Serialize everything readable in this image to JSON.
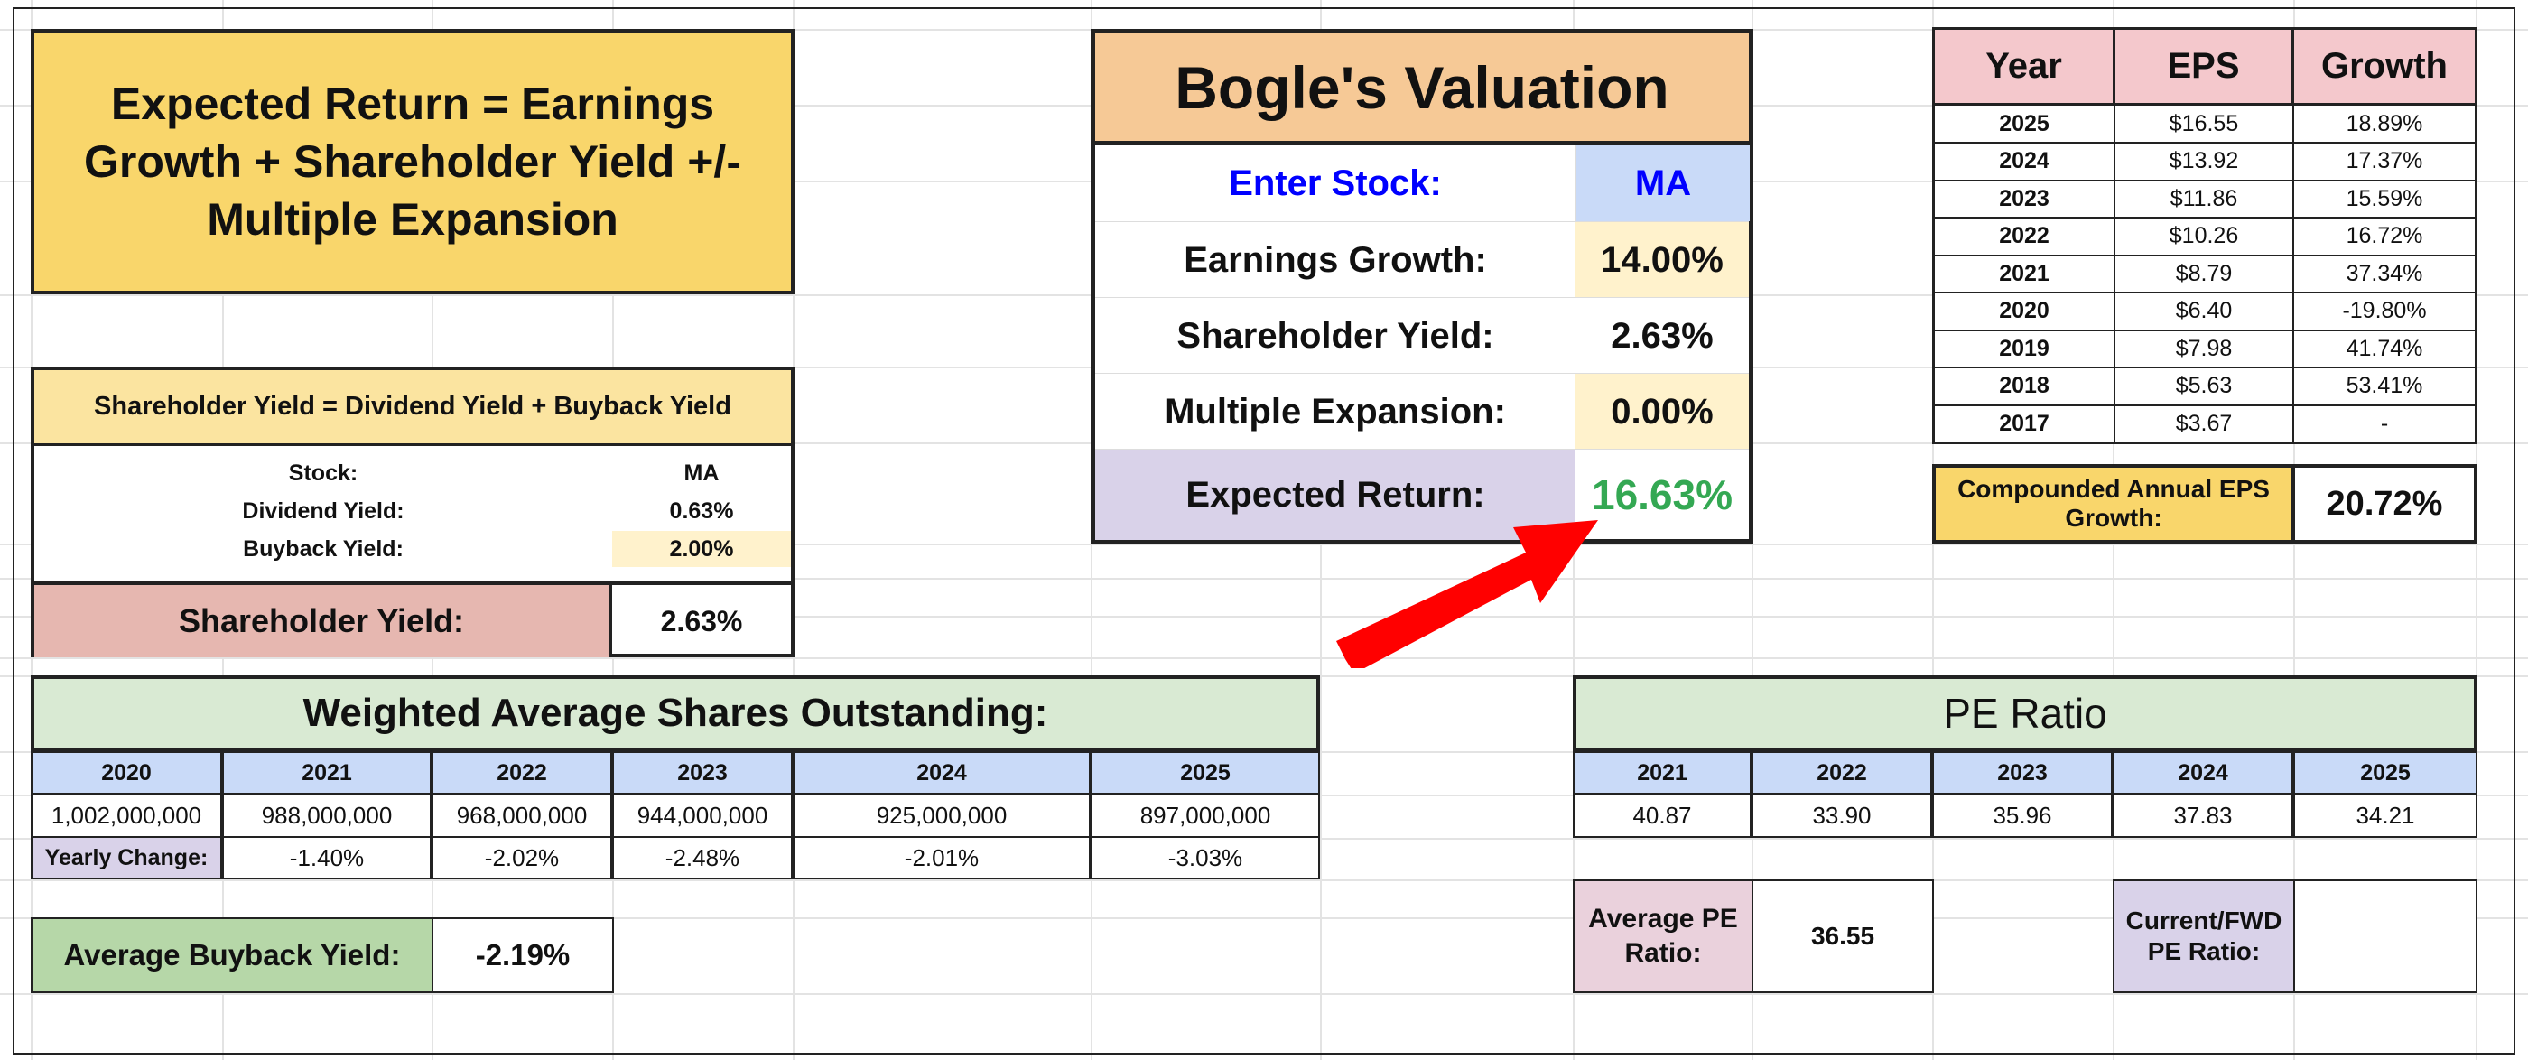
{
  "colors": {
    "title_bg": "#f9d66b",
    "bogle_header": "#f6c996",
    "input_blue": "#c9daf8",
    "input_yellow": "#fff2cc",
    "return_bg": "#d9d2e9",
    "return_green": "#34a853",
    "enter_stock_blue": "#0000ff",
    "arrow_red": "#ff0000"
  },
  "formula": {
    "text": "Expected Return = Earnings Growth + Shareholder Yield +/- Multiple Expansion"
  },
  "shareholder_yield": {
    "header": "Shareholder Yield = Dividend Yield + Buyback Yield",
    "rows": [
      {
        "label": "Stock:",
        "value": "MA"
      },
      {
        "label": "Dividend Yield:",
        "value": "0.63%"
      },
      {
        "label": "Buyback Yield:",
        "value": "2.00%"
      }
    ],
    "total_label": "Shareholder Yield:",
    "total_value": "2.63%"
  },
  "bogle": {
    "title": "Bogle's Valuation",
    "enter_stock_label": "Enter Stock:",
    "stock": "MA",
    "rows": [
      {
        "label": "Earnings Growth:",
        "value": "14.00%"
      },
      {
        "label": "Shareholder Yield:",
        "value": "2.63%"
      },
      {
        "label": "Multiple Expansion:",
        "value": "0.00%"
      }
    ],
    "expected_label": "Expected Return:",
    "expected_value": "16.63%"
  },
  "eps_table": {
    "headers": [
      "Year",
      "EPS",
      "Growth"
    ],
    "rows": [
      [
        "2025",
        "$16.55",
        "18.89%"
      ],
      [
        "2024",
        "$13.92",
        "17.37%"
      ],
      [
        "2023",
        "$11.86",
        "15.59%"
      ],
      [
        "2022",
        "$10.26",
        "16.72%"
      ],
      [
        "2021",
        "$8.79",
        "37.34%"
      ],
      [
        "2020",
        "$6.40",
        "-19.80%"
      ],
      [
        "2019",
        "$7.98",
        "41.74%"
      ],
      [
        "2018",
        "$5.63",
        "53.41%"
      ],
      [
        "2017",
        "$3.67",
        "-"
      ]
    ],
    "cagr_label": "Compounded Annual EPS Growth:",
    "cagr_value": "20.72%"
  },
  "shares": {
    "title": "Weighted Average Shares Outstanding:",
    "years": [
      "2020",
      "2021",
      "2022",
      "2023",
      "2024",
      "2025"
    ],
    "values": [
      "1,002,000,000",
      "988,000,000",
      "968,000,000",
      "944,000,000",
      "925,000,000",
      "897,000,000"
    ],
    "change_label": "Yearly Change:",
    "changes": [
      "-1.40%",
      "-2.02%",
      "-2.48%",
      "-2.01%",
      "-3.03%"
    ],
    "avg_label": "Average Buyback Yield:",
    "avg_value": "-2.19%"
  },
  "pe": {
    "title": "PE Ratio",
    "years": [
      "2021",
      "2022",
      "2023",
      "2024",
      "2025"
    ],
    "values": [
      "40.87",
      "33.90",
      "35.96",
      "37.83",
      "34.21"
    ],
    "avg_label": "Average PE Ratio:",
    "avg_value": "36.55",
    "current_label": "Current/FWD PE Ratio:",
    "current_value": ""
  }
}
